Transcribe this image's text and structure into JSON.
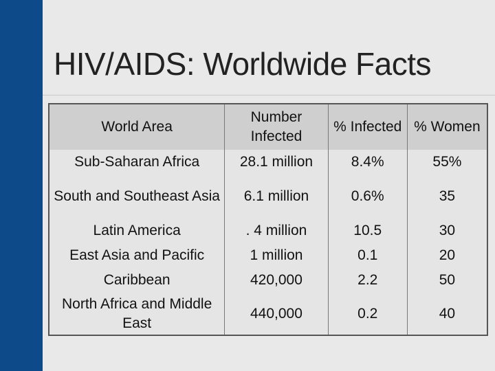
{
  "slide": {
    "title": "HIV/AIDS: Worldwide Facts"
  },
  "table": {
    "headers": [
      "World Area",
      "Number Infected",
      "% Infected",
      "% Women"
    ],
    "rows": [
      [
        "Sub-Saharan Africa",
        "28.1 million",
        "8.4%",
        "55%"
      ],
      [
        "South and Southeast Asia",
        "6.1 million",
        "0.6%",
        "35"
      ],
      [
        "Latin America",
        ". 4 million",
        "10.5",
        "30"
      ],
      [
        "East Asia and Pacific",
        "1 million",
        "0.1",
        "20"
      ],
      [
        "Caribbean",
        "420,000",
        "2.2",
        "50"
      ],
      [
        "North Africa and Middle East",
        "440,000",
        "0.2",
        "40"
      ]
    ]
  }
}
